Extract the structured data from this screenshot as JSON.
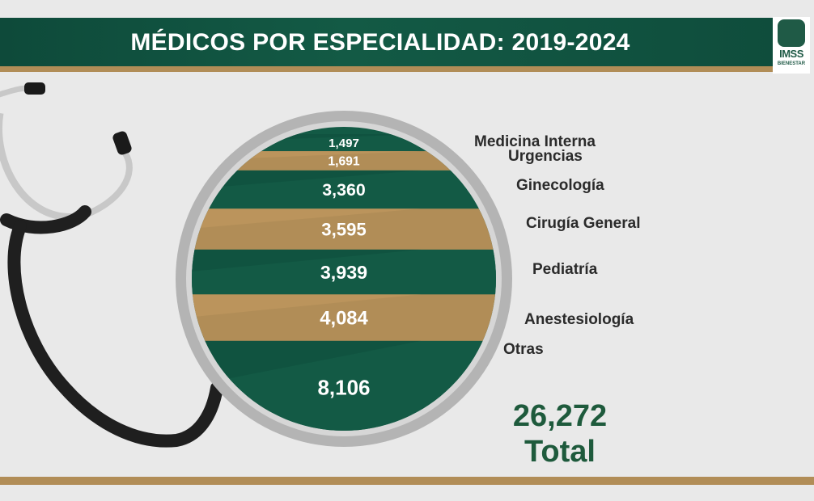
{
  "header": {
    "title": "MÉDICOS POR ESPECIALIDAD: 2019-2024",
    "logo_text": "IMSS",
    "logo_subtext": "BIENESTAR",
    "logo_icon": "imss-eagle-emblem-icon"
  },
  "colors": {
    "green": "#135a45",
    "gold": "#b18d57",
    "total_text": "#1e5a3c",
    "background": "#e9e9e9"
  },
  "chart_data": {
    "type": "bar",
    "title": "MÉDICOS POR ESPECIALIDAD: 2019-2024",
    "categories": [
      "Medicina Interna",
      "Urgencias",
      "Ginecología",
      "Cirugía General",
      "Pediatría",
      "Anestesiología",
      "Otras"
    ],
    "values": [
      1497,
      1691,
      3360,
      3595,
      3939,
      4084,
      8106
    ],
    "value_labels": [
      "1,497",
      "1,691",
      "3,360",
      "3,595",
      "3,939",
      "4,084",
      "8,106"
    ],
    "total": {
      "value": "26,272",
      "label": "Total"
    }
  }
}
